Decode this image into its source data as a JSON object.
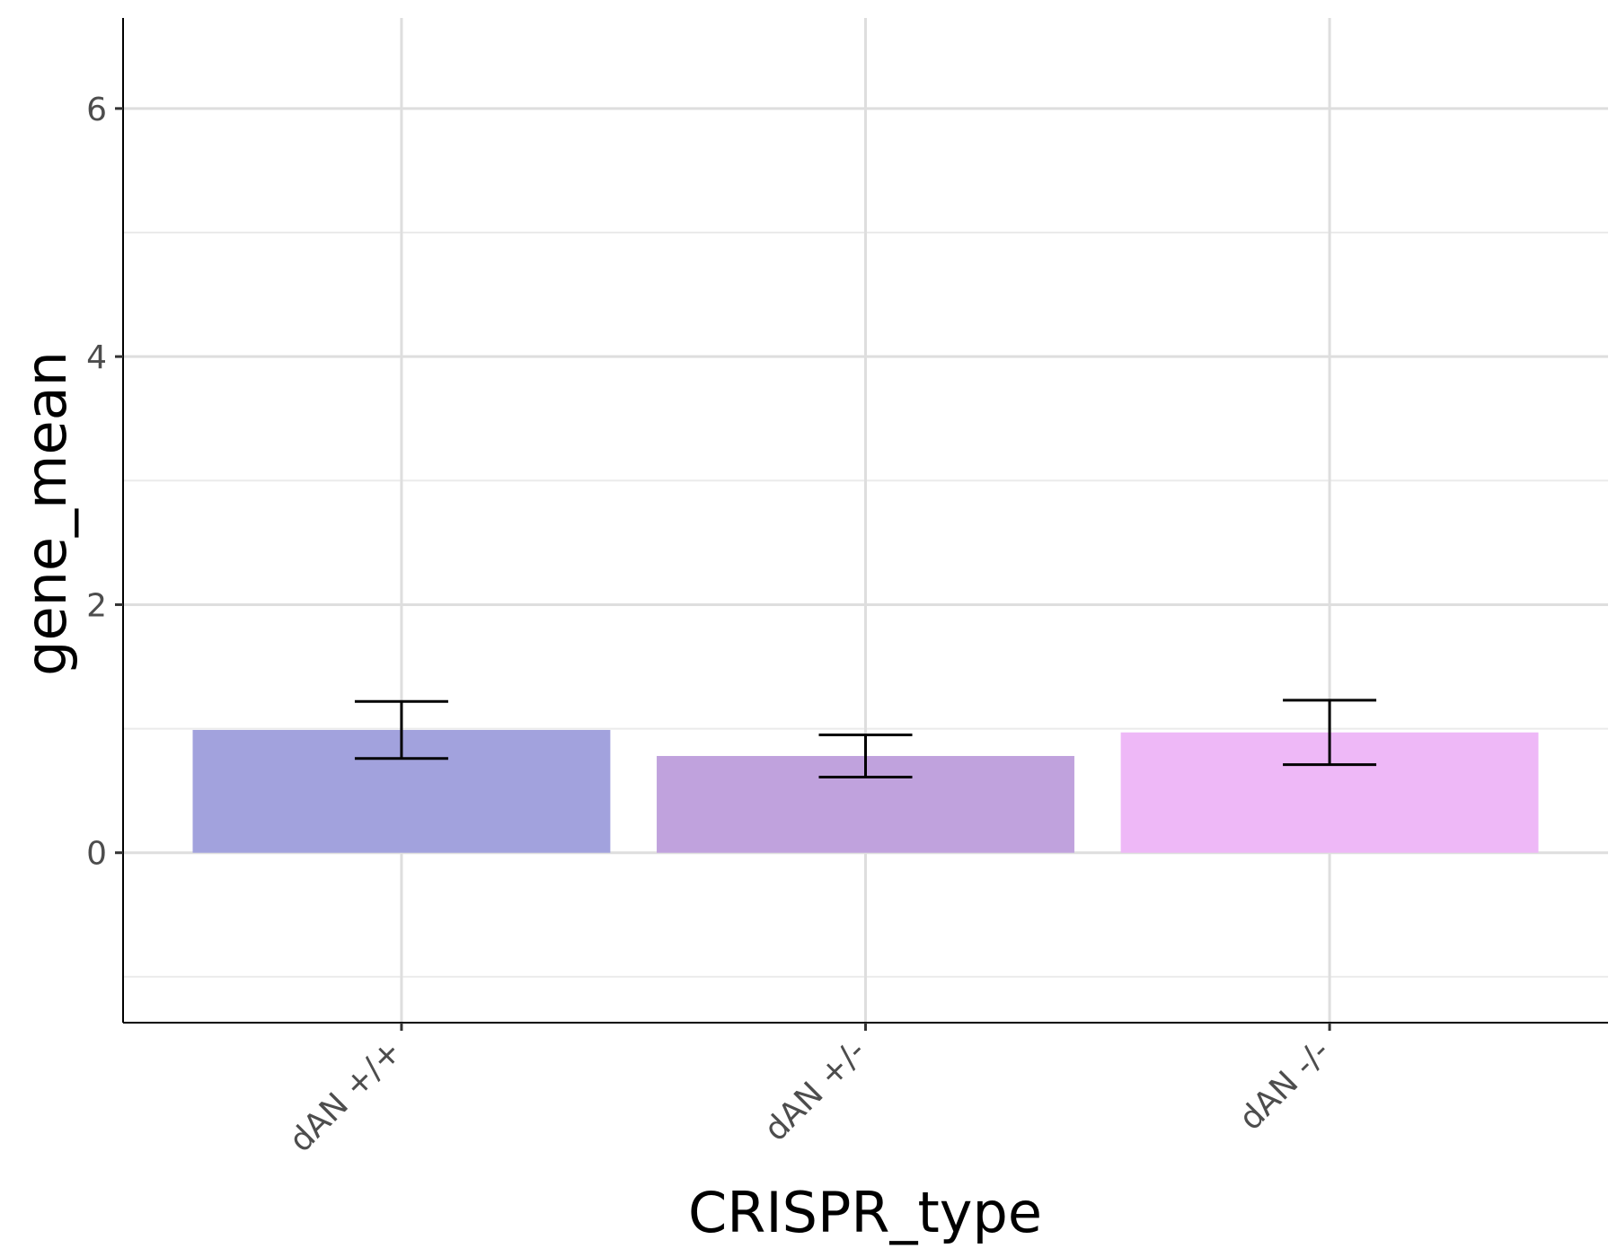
{
  "chart_data": {
    "type": "bar",
    "xlabel": "CRISPR_type",
    "ylabel": "gene_mean",
    "categories": [
      "dAN +/+",
      "dAN +/-",
      "dAN -/-"
    ],
    "values": [
      0.99,
      0.78,
      0.97
    ],
    "error_bars": [
      {
        "low": 0.76,
        "high": 1.22
      },
      {
        "low": 0.61,
        "high": 0.95
      },
      {
        "low": 0.71,
        "high": 1.23
      }
    ],
    "bar_colors": [
      "#a2a2dd",
      "#c0a2dd",
      "#eeb8f7"
    ],
    "ylim": [
      -1.37,
      6.73
    ],
    "y_ticks": [
      0,
      2,
      4,
      6
    ],
    "y_tick_labels": [
      "0",
      "2",
      "4",
      "6"
    ],
    "y_minor_ticks": [
      -1,
      1,
      3,
      5
    ],
    "grid": true,
    "legend": "none"
  }
}
